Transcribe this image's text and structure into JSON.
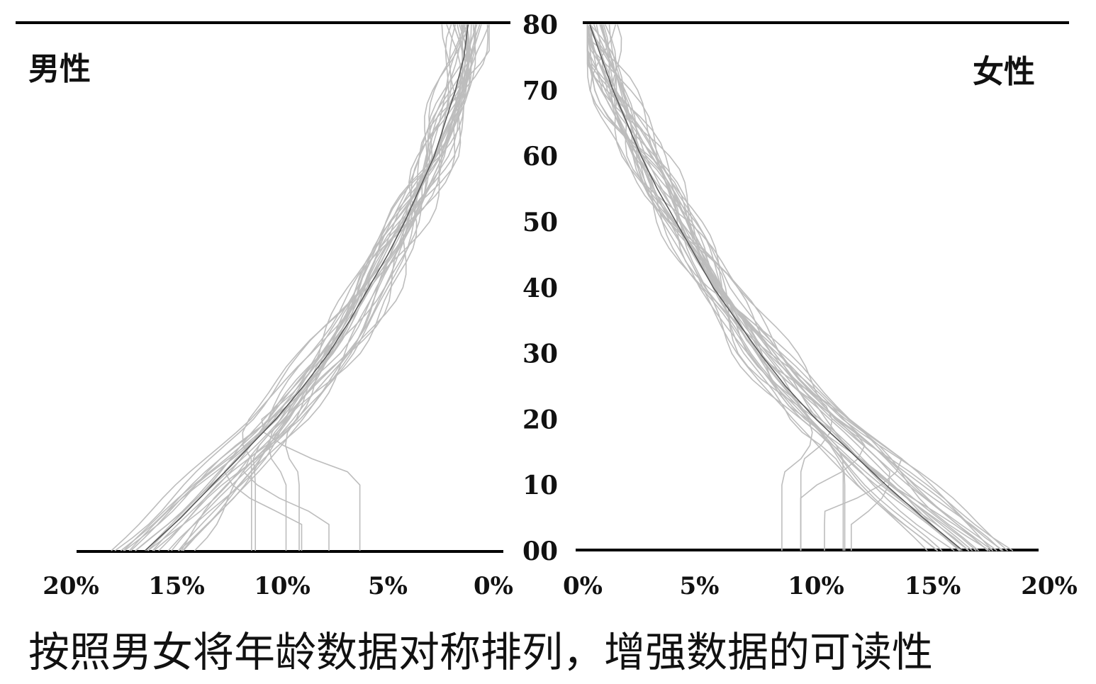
{
  "chart_data": {
    "type": "line",
    "subtype": "mirrored age distribution",
    "panels": [
      {
        "id": "male",
        "label": "男性",
        "side": "left",
        "xlim": [
          20,
          0
        ]
      },
      {
        "id": "female",
        "label": "女性",
        "side": "right",
        "xlim": [
          0,
          20
        ]
      }
    ],
    "ylim": [
      0,
      80
    ],
    "y_ticks": [
      "00",
      "10",
      "20",
      "30",
      "40",
      "50",
      "60",
      "70",
      "80"
    ],
    "x_ticks_left": [
      "20%",
      "15%",
      "10%",
      "5%",
      "0%"
    ],
    "x_ticks_right": [
      "0%",
      "5%",
      "10%",
      "15%",
      "20%"
    ],
    "reference_curve": {
      "age": [
        0,
        5,
        10,
        15,
        20,
        25,
        30,
        35,
        40,
        45,
        50,
        55,
        60,
        65,
        70,
        75,
        80
      ],
      "male_percent": [
        16.5,
        14.8,
        13.3,
        11.8,
        10.3,
        9.0,
        7.8,
        6.8,
        5.9,
        5.0,
        4.2,
        3.5,
        2.8,
        2.3,
        1.8,
        1.4,
        1.2
      ],
      "female_percent": [
        16.3,
        14.6,
        13.0,
        11.5,
        10.0,
        8.7,
        7.6,
        6.6,
        5.6,
        4.8,
        4.0,
        3.2,
        2.5,
        1.9,
        1.3,
        0.8,
        0.3
      ]
    },
    "sample_curve_count": 30,
    "colors": {
      "reference": "#555555",
      "samples": "#bdbdbd",
      "axis": "#000000"
    }
  },
  "caption": "按照男女将年龄数据对称排列，增强数据的可读性"
}
